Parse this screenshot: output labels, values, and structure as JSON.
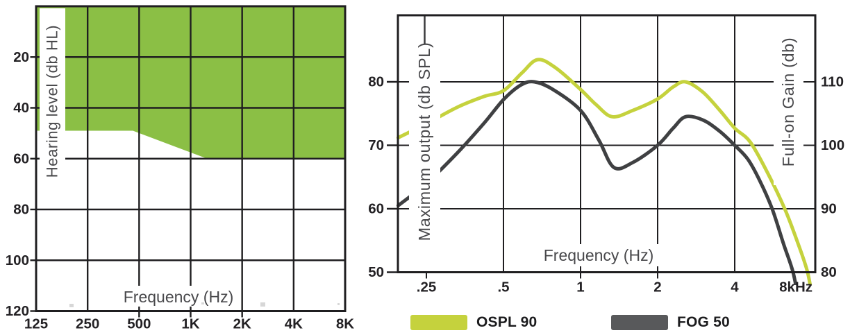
{
  "figure_title": "",
  "chart_data": [
    {
      "id": "fitting-range",
      "type": "area",
      "description": "Hearing aid fitting range audiogram; green region shows aidable hearing levels",
      "x_axis": {
        "title": "Frequency  (Hz)",
        "scale": "log2",
        "ticks": [
          {
            "f": 125,
            "label": "125"
          },
          {
            "f": 250,
            "label": "250"
          },
          {
            "f": 500,
            "label": "500"
          },
          {
            "f": 1000,
            "label": "1K"
          },
          {
            "f": 2000,
            "label": "2K"
          },
          {
            "f": 4000,
            "label": "4K"
          },
          {
            "f": 8000,
            "label": "8K"
          }
        ],
        "minor_stub_ticks": [
          500,
          1000,
          2000
        ]
      },
      "y_axis": {
        "title": "Hearing level  (db HL)",
        "range": [
          0,
          120
        ],
        "direction": "down",
        "ticks": [
          {
            "v": 20,
            "label": "20"
          },
          {
            "v": 40,
            "label": "40"
          },
          {
            "v": 60,
            "label": "60"
          },
          {
            "v": 80,
            "label": "80"
          },
          {
            "v": 100,
            "label": "100"
          },
          {
            "v": 120,
            "label": "120"
          }
        ]
      },
      "region": {
        "name": "fitting-range-area",
        "color": "#8bbf45",
        "fill_from_db": 0,
        "boundary_hz_db": [
          [
            125,
            49
          ],
          [
            460,
            49
          ],
          [
            1250,
            60
          ],
          [
            8000,
            60
          ]
        ]
      },
      "grid": true
    },
    {
      "id": "output-gain",
      "type": "line",
      "description": "Maximum output (OSPL 90) and full-on gain (FOG 50) frequency response curves",
      "x_axis": {
        "title": "Frequency  (Hz)",
        "scale": "log2",
        "ticks": [
          {
            "f": 0.25,
            "label": ".25"
          },
          {
            "f": 0.5,
            "label": ".5"
          },
          {
            "f": 1,
            "label": "1"
          },
          {
            "f": 2,
            "label": "2"
          },
          {
            "f": 4,
            "label": "4"
          },
          {
            "f": 8,
            "label": "8kHz"
          }
        ],
        "gridline_freqs": [
          0.5,
          1,
          2,
          4
        ],
        "minor_stub_ticks": [
          0.25,
          1,
          2
        ]
      },
      "y_axis_left": {
        "title": "Maximum output  (db SPL)",
        "ticks": [
          {
            "v": 80,
            "label": "80"
          },
          {
            "v": 70,
            "label": "70"
          },
          {
            "v": 60,
            "label": "60"
          },
          {
            "v": 50,
            "label": "50"
          }
        ]
      },
      "y_axis_right": {
        "title": "Full-on Gain  (db)",
        "ticks": [
          {
            "v": 80,
            "label": "110"
          },
          {
            "v": 70,
            "label": "100"
          },
          {
            "v": 60,
            "label": "90"
          },
          {
            "v": 50,
            "label": "80"
          }
        ]
      },
      "series": [
        {
          "name": "OSPL 90",
          "color": "#c5d23d",
          "points_khz_db": [
            [
              0.194,
              71.2
            ],
            [
              0.25,
              73.4
            ],
            [
              0.33,
              76.0
            ],
            [
              0.42,
              77.7
            ],
            [
              0.5,
              78.6
            ],
            [
              0.59,
              81.4
            ],
            [
              0.68,
              83.5
            ],
            [
              0.8,
              82.2
            ],
            [
              1.0,
              78.8
            ],
            [
              1.15,
              76.4
            ],
            [
              1.33,
              74.5
            ],
            [
              1.6,
              75.5
            ],
            [
              2.0,
              77.3
            ],
            [
              2.3,
              79.2
            ],
            [
              2.57,
              80.0
            ],
            [
              3.0,
              78.4
            ],
            [
              3.5,
              75.5
            ],
            [
              4.0,
              72.7
            ],
            [
              4.6,
              70.5
            ],
            [
              5.4,
              65.5
            ],
            [
              6.27,
              60.0
            ],
            [
              7.0,
              55.0
            ],
            [
              7.7,
              50.0
            ],
            [
              8.1,
              45.0
            ]
          ]
        },
        {
          "name": "FOG 50",
          "color": "#3f4042",
          "points_khz_db": [
            [
              0.194,
              60.5
            ],
            [
              0.25,
              64.0
            ],
            [
              0.33,
              68.8
            ],
            [
              0.42,
              73.5
            ],
            [
              0.5,
              77.2
            ],
            [
              0.585,
              79.5
            ],
            [
              0.66,
              80.0
            ],
            [
              0.78,
              78.8
            ],
            [
              1.0,
              75.5
            ],
            [
              1.18,
              70.8
            ],
            [
              1.35,
              66.5
            ],
            [
              1.6,
              67.3
            ],
            [
              2.0,
              70.0
            ],
            [
              2.3,
              72.7
            ],
            [
              2.57,
              74.5
            ],
            [
              3.0,
              74.0
            ],
            [
              3.5,
              72.2
            ],
            [
              4.0,
              70.0
            ],
            [
              4.5,
              67.8
            ],
            [
              5.0,
              64.5
            ],
            [
              5.6,
              60.0
            ],
            [
              6.2,
              54.5
            ],
            [
              6.76,
              50.0
            ],
            [
              7.1,
              45.5
            ]
          ]
        }
      ],
      "grid": true
    }
  ],
  "legend": [
    {
      "label": "OSPL 90",
      "color": "#c5d23d"
    },
    {
      "label": "FOG 50",
      "color": "#58595b"
    }
  ],
  "colors": {
    "grid": "#1f1e20",
    "tick_text": "#232124",
    "axis_title_text": "#48484b",
    "region_green": "#8bbf45",
    "ospl_curve": "#c5d23d",
    "fog_curve": "#3f4042",
    "fog_legend_swatch": "#58595b"
  }
}
